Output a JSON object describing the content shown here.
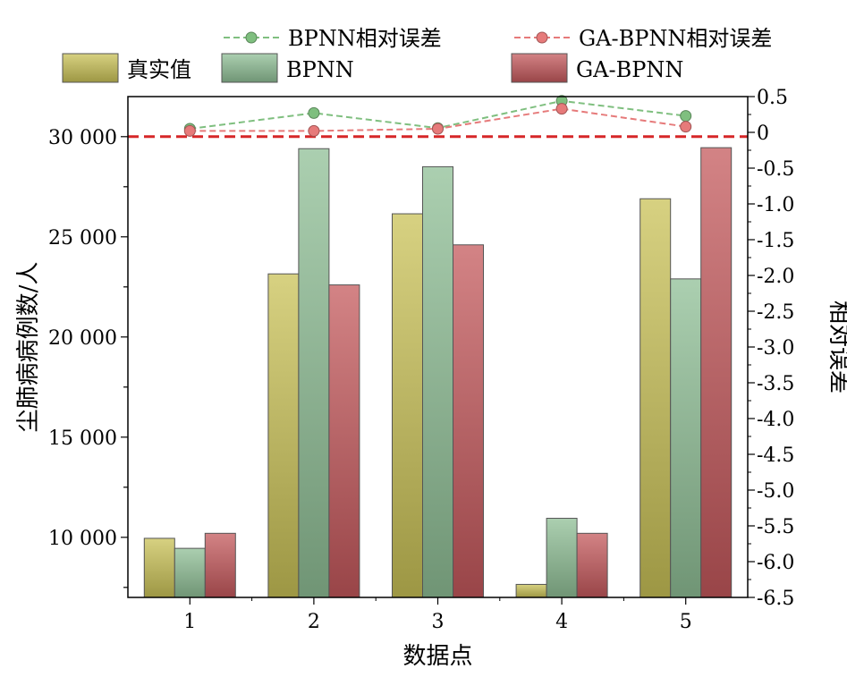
{
  "chart_data": {
    "type": "bar",
    "categories": [
      "1",
      "2",
      "3",
      "4",
      "5"
    ],
    "xlabel": "数据点",
    "ylabel": "尘肺病病例数/人",
    "ylabel_right": "相对误差",
    "ylim": [
      7000,
      32000
    ],
    "ylim_right": [
      -6.5,
      0.5
    ],
    "yticks": [
      10000,
      15000,
      20000,
      25000,
      30000
    ],
    "ytick_labels": [
      "10 000",
      "15 000",
      "20 000",
      "25 000",
      "30 000"
    ],
    "yticks_right": [
      0.5,
      0,
      -0.5,
      -1.0,
      -1.5,
      -2.0,
      -2.5,
      -3.0,
      -3.5,
      -4.0,
      -4.5,
      -5.0,
      -5.5,
      -6.0,
      -6.5
    ],
    "ytick_labels_right": [
      "0.5",
      "0",
      "-0.5",
      "-1.0",
      "-1.5",
      "-2.0",
      "-2.5",
      "-3.0",
      "-3.5",
      "-4.0",
      "-4.5",
      "-5.0",
      "-5.5",
      "-6.0",
      "-6.5"
    ],
    "series": [
      {
        "name": "真实值",
        "type": "bar",
        "axis": "left",
        "color": "#c9c257",
        "values": [
          9950,
          23150,
          26150,
          7650,
          26900
        ]
      },
      {
        "name": "BPNN",
        "type": "bar",
        "axis": "left",
        "color": "#8fbf96",
        "values": [
          9450,
          29400,
          28500,
          10950,
          22900
        ]
      },
      {
        "name": "GA-BPNN",
        "type": "bar",
        "axis": "left",
        "color": "#c4595c",
        "values": [
          10200,
          22600,
          24600,
          10200,
          29450
        ]
      },
      {
        "name": "BPNN相对误差",
        "type": "line",
        "axis": "right",
        "color": "#7fbf7f",
        "values": [
          0.05,
          0.27,
          0.06,
          0.44,
          0.23
        ]
      },
      {
        "name": "GA-BPNN相对误差",
        "type": "line",
        "axis": "right",
        "color": "#e67a7a",
        "values": [
          0.02,
          0.02,
          0.05,
          0.33,
          0.08
        ]
      }
    ],
    "reference_line": {
      "axis": "left",
      "value": 30000,
      "color": "#d62728"
    },
    "grid": false,
    "legend_position": "top"
  }
}
